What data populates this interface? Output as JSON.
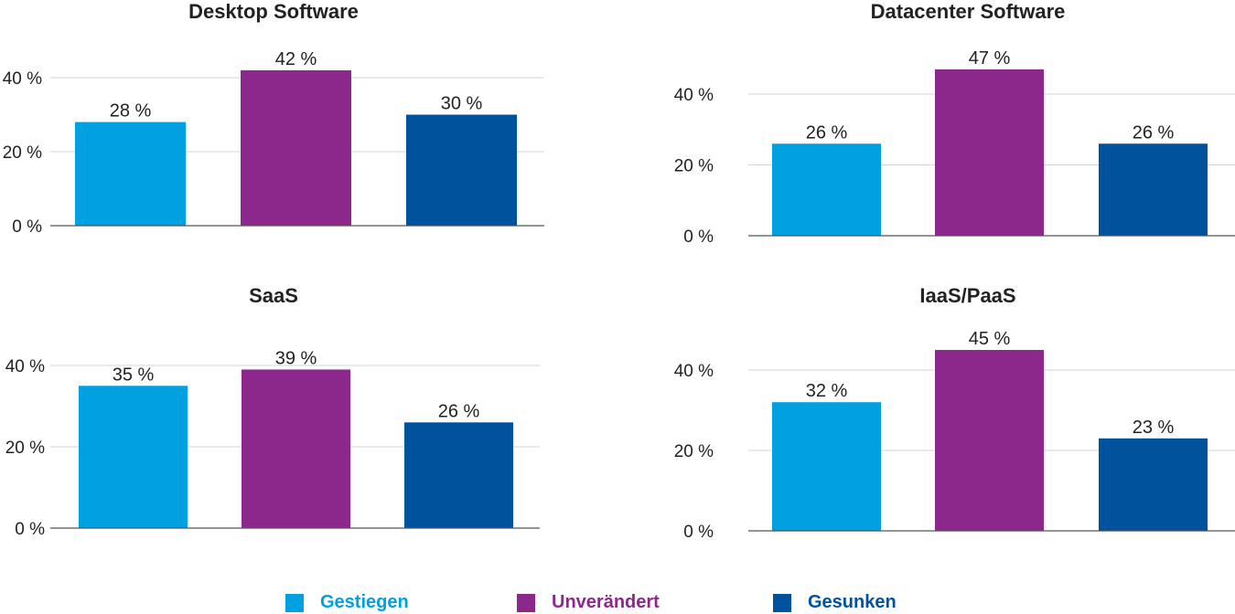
{
  "chart_data": [
    {
      "type": "bar",
      "title": "Desktop Software",
      "categories": [
        "Gestiegen",
        "Unverändert",
        "Gesunken"
      ],
      "values": [
        28,
        42,
        30
      ],
      "value_labels": [
        "28 %",
        "42 %",
        "30 %"
      ],
      "ylim": [
        0,
        50
      ],
      "yticks": [
        0,
        20,
        40
      ],
      "ytick_labels": [
        "0 %",
        "20 %",
        "40 %"
      ],
      "grid": true
    },
    {
      "type": "bar",
      "title": "Datacenter Software",
      "categories": [
        "Gestiegen",
        "Unverändert",
        "Gesunken"
      ],
      "values": [
        26,
        47,
        26
      ],
      "value_labels": [
        "26 %",
        "47 %",
        "26 %"
      ],
      "ylim": [
        0,
        50
      ],
      "yticks": [
        0,
        20,
        40
      ],
      "ytick_labels": [
        "0 %",
        "20 %",
        "40 %"
      ],
      "grid": true
    },
    {
      "type": "bar",
      "title": "SaaS",
      "categories": [
        "Gestiegen",
        "Unverändert",
        "Gesunken"
      ],
      "values": [
        35,
        39,
        26
      ],
      "value_labels": [
        "35 %",
        "39 %",
        "26 %"
      ],
      "ylim": [
        0,
        50
      ],
      "yticks": [
        0,
        20,
        40
      ],
      "ytick_labels": [
        "0 %",
        "20 %",
        "40 %"
      ],
      "grid": true
    },
    {
      "type": "bar",
      "title": "IaaS/PaaS",
      "categories": [
        "Gestiegen",
        "Unverändert",
        "Gesunken"
      ],
      "values": [
        32,
        45,
        23
      ],
      "value_labels": [
        "32 %",
        "45 %",
        "23 %"
      ],
      "ylim": [
        0,
        50
      ],
      "yticks": [
        0,
        20,
        40
      ],
      "ytick_labels": [
        "0 %",
        "20 %",
        "40 %"
      ],
      "grid": true
    }
  ],
  "legend": {
    "placement": "bottom",
    "items": [
      {
        "label": "Gestiegen",
        "color": "#00a0e1"
      },
      {
        "label": "Unverändert",
        "color": "#8c288c"
      },
      {
        "label": "Gesunken",
        "color": "#00529c"
      }
    ]
  },
  "colors": {
    "text": "#222222",
    "grid": "#d5d5dc",
    "axis": "#555555"
  }
}
